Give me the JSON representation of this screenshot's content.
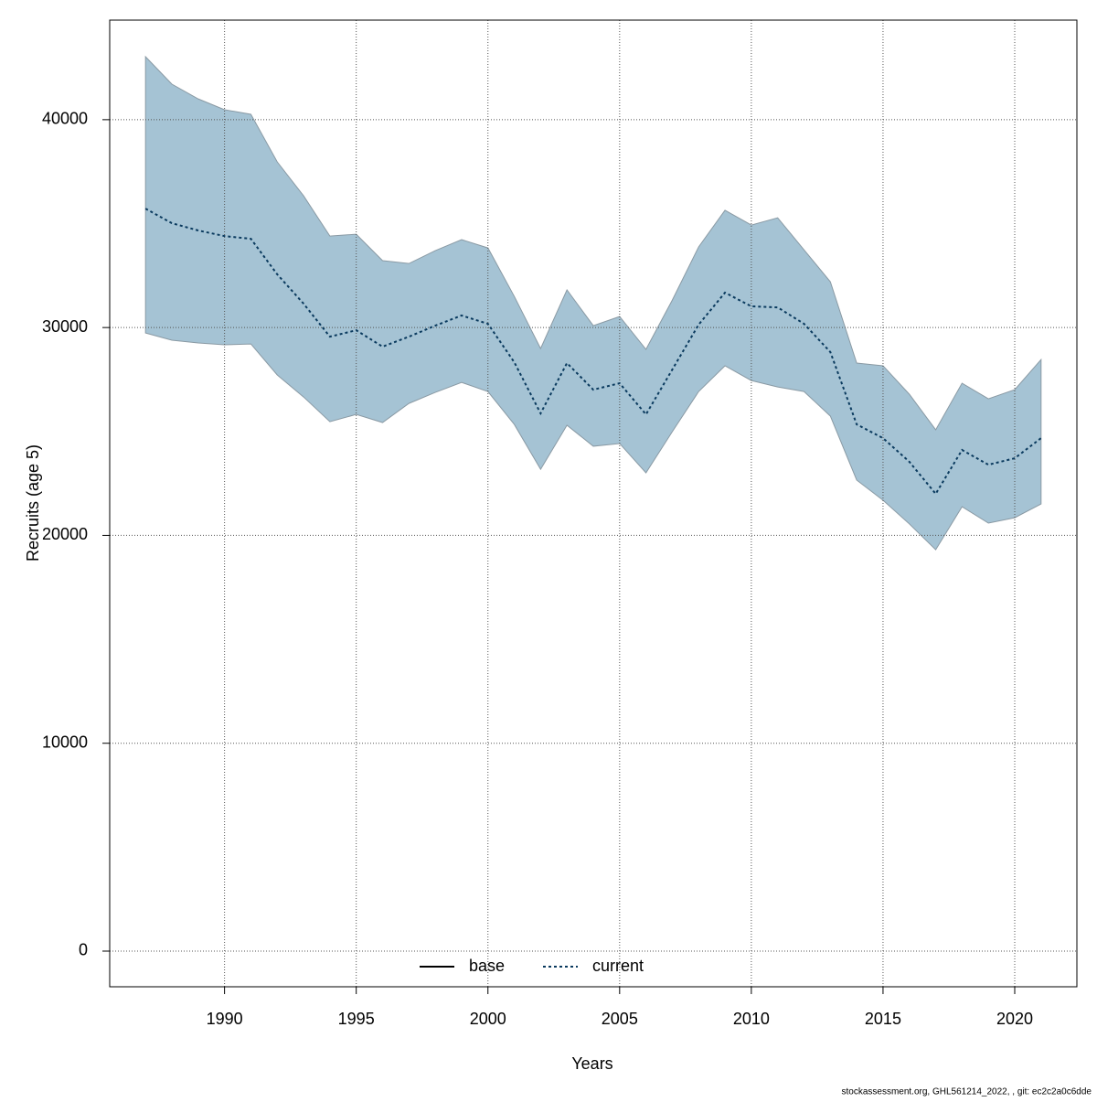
{
  "chart_data": {
    "type": "line_band",
    "x_label": "Years",
    "y_label": "Recruits (age 5)",
    "footer": "stockassessment.org, GHL561214_2022,  , git: ec2c2a0c6dde",
    "x": [
      1987,
      1988,
      1989,
      1990,
      1991,
      1992,
      1993,
      1994,
      1995,
      1996,
      1997,
      1998,
      1999,
      2000,
      2001,
      2002,
      2003,
      2004,
      2005,
      2006,
      2007,
      2008,
      2009,
      2010,
      2011,
      2012,
      2013,
      2014,
      2015,
      2016,
      2017,
      2018,
      2019,
      2020,
      2021
    ],
    "series": [
      {
        "name": "base",
        "color": "#000000",
        "dash": "solid"
      },
      {
        "name": "current",
        "color": "#0a3a5e",
        "dash": "dotted",
        "band_color": "#a5c3d4",
        "values": [
          35720,
          35020,
          34670,
          34400,
          34270,
          32560,
          31150,
          29560,
          29870,
          29080,
          29560,
          30090,
          30580,
          30180,
          28330,
          25870,
          28290,
          27010,
          27320,
          25820,
          27980,
          30140,
          31680,
          31020,
          30970,
          30180,
          28820,
          25340,
          24680,
          23540,
          22000,
          24110,
          23400,
          23710,
          24680
        ],
        "upper": [
          43030,
          41710,
          41000,
          40480,
          40260,
          37970,
          36340,
          34400,
          34490,
          33220,
          33080,
          33700,
          34230,
          33830,
          31500,
          28990,
          31810,
          30090,
          30530,
          28950,
          31320,
          33880,
          35640,
          34930,
          35280,
          33740,
          32200,
          28290,
          28160,
          26790,
          25080,
          27320,
          26570,
          27010,
          28460
        ],
        "lower": [
          29740,
          29390,
          29260,
          29170,
          29210,
          27720,
          26660,
          25470,
          25820,
          25430,
          26350,
          26880,
          27360,
          26920,
          25340,
          23180,
          25300,
          24290,
          24420,
          23010,
          24990,
          26920,
          28160,
          27450,
          27140,
          26920,
          25740,
          22660,
          21690,
          20550,
          19310,
          21380,
          20590,
          20850,
          21510
        ]
      }
    ],
    "xlim": [
      1985.64,
      2022.36
    ],
    "ylim": [
      -1716,
      44790
    ],
    "xticks": [
      1990,
      1995,
      2000,
      2005,
      2010,
      2015,
      2020
    ],
    "yticks": [
      0,
      10000,
      20000,
      30000,
      40000
    ],
    "grid": true,
    "legend_position": "bottom"
  }
}
